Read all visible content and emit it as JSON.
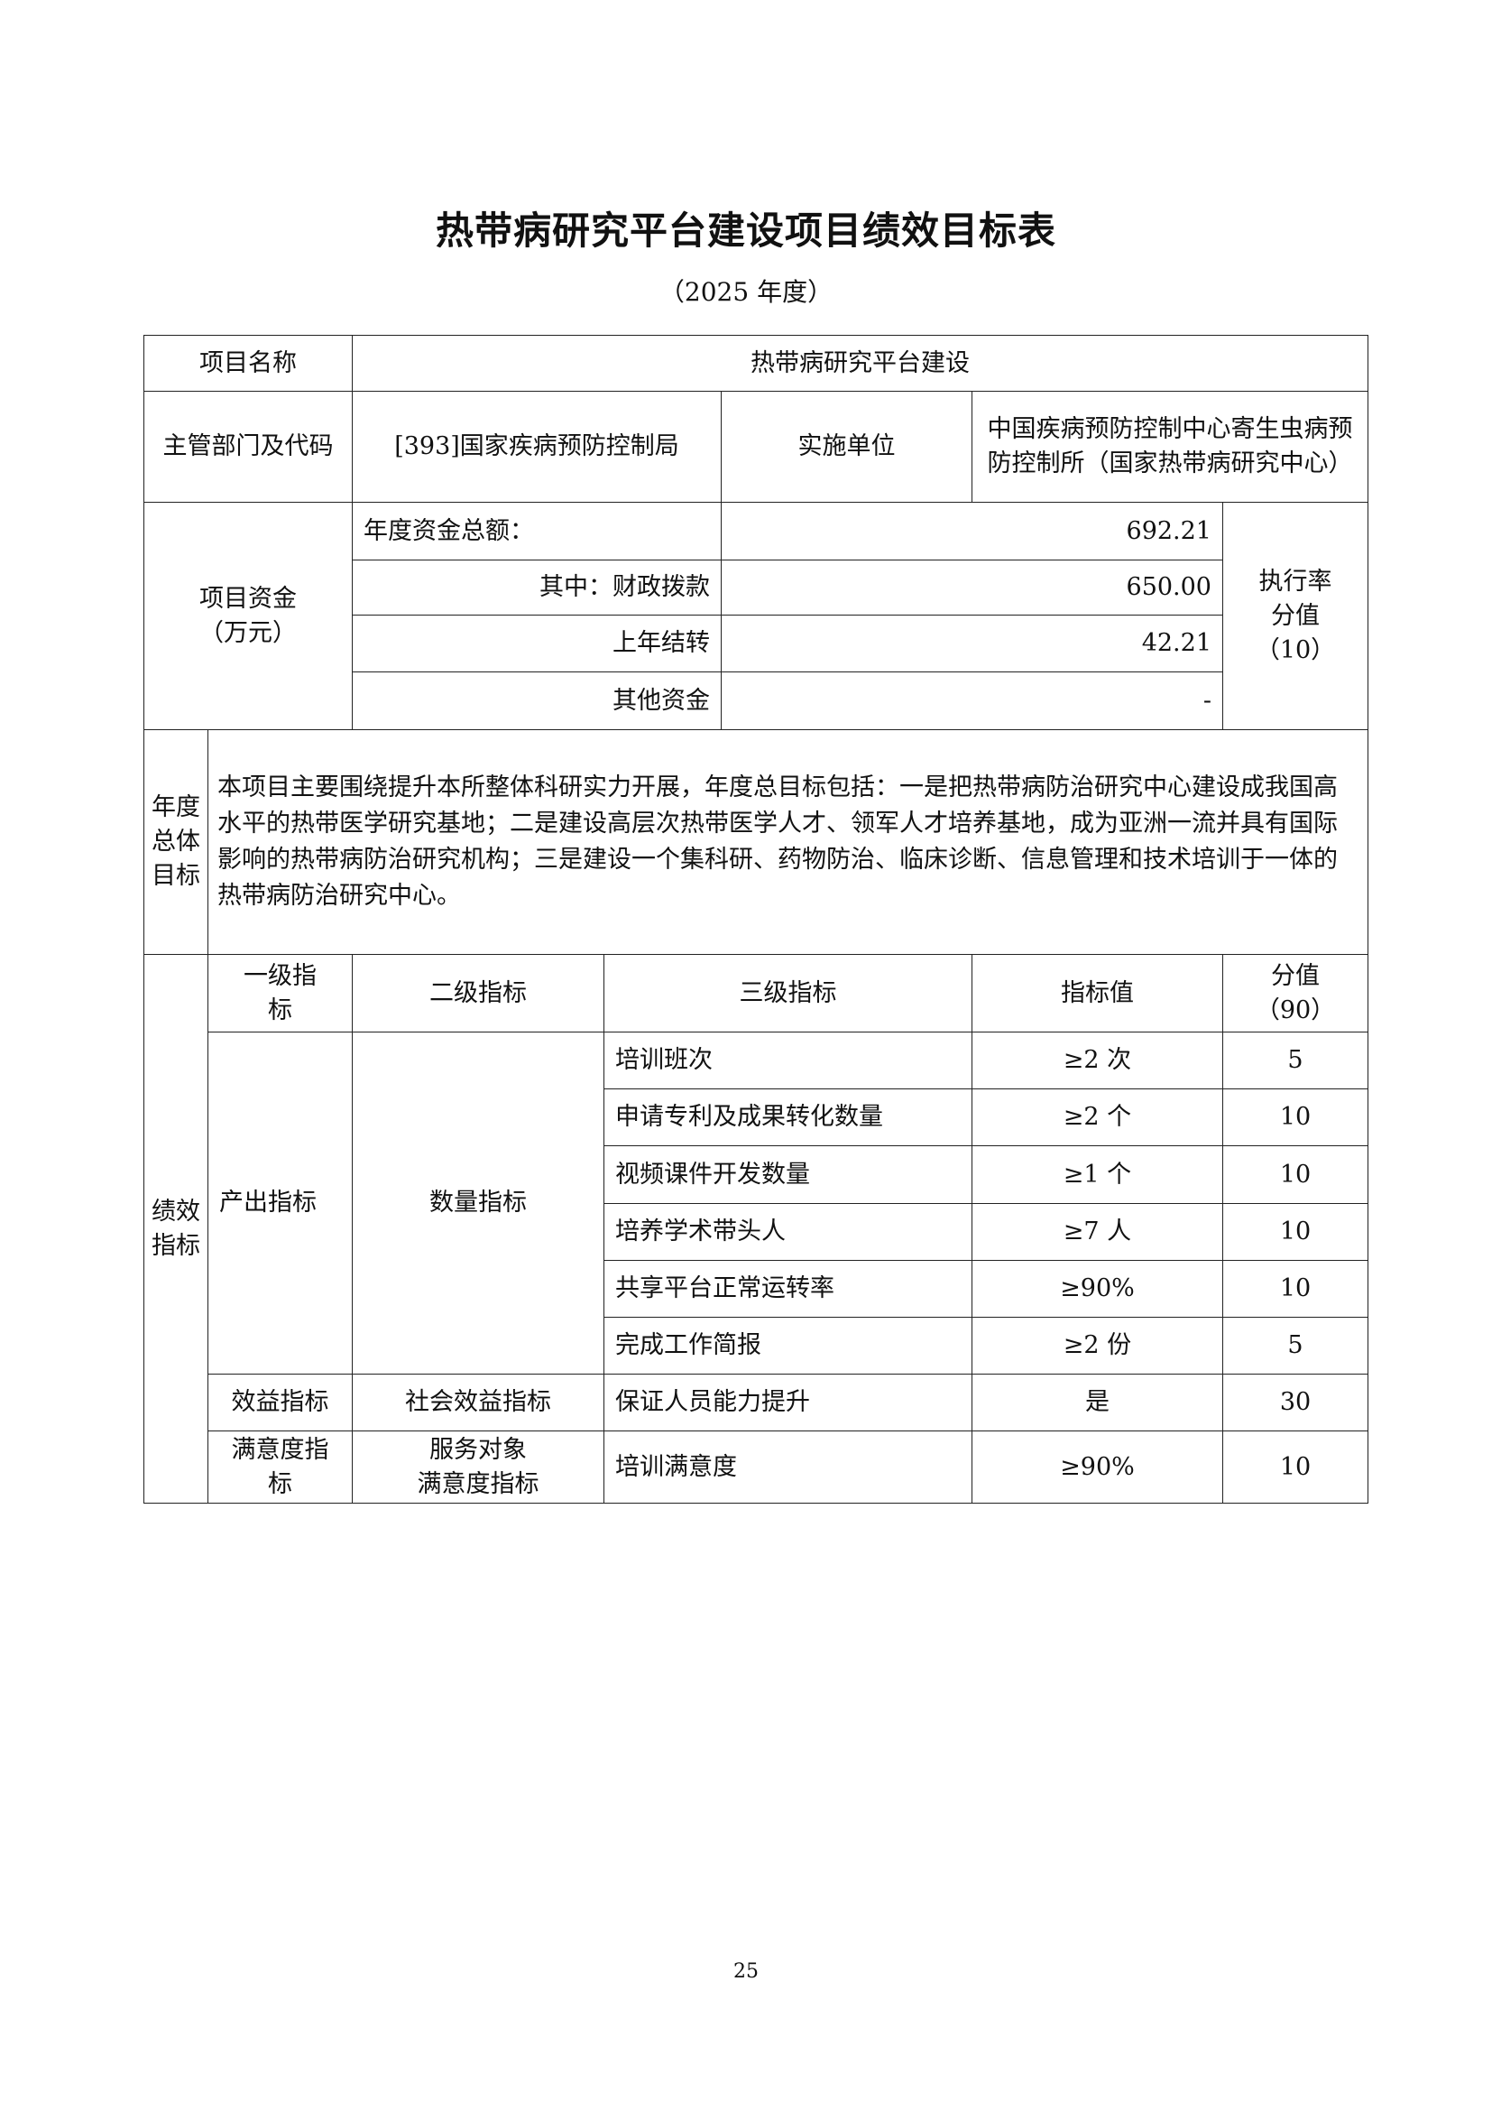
{
  "title": "热带病研究平台建设项目绩效目标表",
  "subtitle": "（2025 年度）",
  "project": {
    "name_label": "项目名称",
    "name_value": "热带病研究平台建设",
    "dept_label": "主管部门及代码",
    "dept_value": "[393]国家疾病预防控制局",
    "impl_label": "实施单位",
    "impl_value": "中国疾病预防控制中心寄生虫病预防控制所（国家热带病研究中心）"
  },
  "funds": {
    "label": "项目资金（万元）",
    "label_line1": "项目资金",
    "label_line2": "（万元）",
    "rows": [
      {
        "label": "年度资金总额：",
        "value": "692.21"
      },
      {
        "label": "其中：财政拨款",
        "value": "650.00"
      },
      {
        "label": "上年结转",
        "value": "42.21"
      },
      {
        "label": "其他资金",
        "value": "-"
      }
    ],
    "exec_label_line1": "执行率",
    "exec_label_line2": "分值",
    "exec_label_line3": "（10）"
  },
  "goal": {
    "label": "年度总体目标",
    "text": "本项目主要围绕提升本所整体科研实力开展，年度总目标包括：一是把热带病防治研究中心建设成我国高水平的热带医学研究基地；二是建设高层次热带医学人才、领军人才培养基地，成为亚洲一流并具有国际影响的热带病防治研究机构；三是建设一个集科研、药物防治、临床诊断、信息管理和技术培训于一体的热带病防治研究中心。"
  },
  "indicators": {
    "label": "绩效指标",
    "headers": {
      "level1": "一级指标",
      "level2": "二级指标",
      "level3": "三级指标",
      "value": "指标值",
      "score_line1": "分值",
      "score_line2": "（90）"
    },
    "output_level1": "产出指标",
    "output_level2": "数量指标",
    "output_rows": [
      {
        "name": "培训班次",
        "value": "≥2 次",
        "score": "5"
      },
      {
        "name": "申请专利及成果转化数量",
        "value": "≥2 个",
        "score": "10"
      },
      {
        "name": "视频课件开发数量",
        "value": "≥1 个",
        "score": "10"
      },
      {
        "name": "培养学术带头人",
        "value": "≥7 人",
        "score": "10"
      },
      {
        "name": "共享平台正常运转率",
        "value": "≥90%",
        "score": "10"
      },
      {
        "name": "完成工作简报",
        "value": "≥2 份",
        "score": "5"
      }
    ],
    "benefit": {
      "level1": "效益指标",
      "level2": "社会效益指标",
      "name": "保证人员能力提升",
      "value": "是",
      "score": "30"
    },
    "satisfaction": {
      "level1": "满意度指标",
      "level2_line1": "服务对象",
      "level2_line2": "满意度指标",
      "name": "培训满意度",
      "value": "≥90%",
      "score": "10"
    }
  },
  "page_number": "25"
}
